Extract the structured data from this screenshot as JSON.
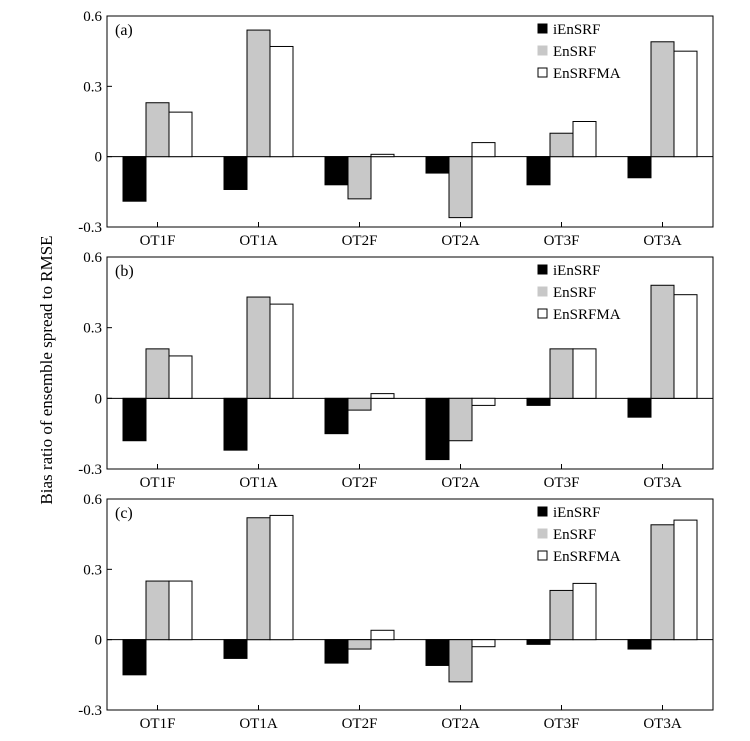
{
  "ylabel": "Bias ratio of ensemble spread to RMSE",
  "chart_data": [
    {
      "type": "bar",
      "panel_label": "(a)",
      "categories": [
        "OT1F",
        "OT1A",
        "OT2F",
        "OT2A",
        "OT3F",
        "OT3A"
      ],
      "series": [
        {
          "name": "iEnSRF",
          "color": "#000000",
          "values": [
            -0.19,
            -0.14,
            -0.12,
            -0.07,
            -0.12,
            -0.09
          ]
        },
        {
          "name": "EnSRF",
          "color": "#c8c8c8",
          "values": [
            0.23,
            0.54,
            -0.18,
            -0.26,
            0.1,
            0.49
          ]
        },
        {
          "name": "EnSRFMA",
          "color": "#ffffff",
          "values": [
            0.19,
            0.47,
            0.01,
            0.06,
            0.15,
            0.45
          ]
        }
      ],
      "ylim": [
        -0.3,
        0.6
      ],
      "yticks": [
        "-0.3",
        "0",
        "0.3",
        "0.6"
      ],
      "legend_position": "top-right"
    },
    {
      "type": "bar",
      "panel_label": "(b)",
      "categories": [
        "OT1F",
        "OT1A",
        "OT2F",
        "OT2A",
        "OT3F",
        "OT3A"
      ],
      "series": [
        {
          "name": "iEnSRF",
          "color": "#000000",
          "values": [
            -0.18,
            -0.22,
            -0.15,
            -0.26,
            -0.03,
            -0.08
          ]
        },
        {
          "name": "EnSRF",
          "color": "#c8c8c8",
          "values": [
            0.21,
            0.43,
            -0.05,
            -0.18,
            0.21,
            0.48
          ]
        },
        {
          "name": "EnSRFMA",
          "color": "#ffffff",
          "values": [
            0.18,
            0.4,
            0.02,
            -0.03,
            0.21,
            0.44
          ]
        }
      ],
      "ylim": [
        -0.3,
        0.6
      ],
      "yticks": [
        "-0.3",
        "0",
        "0.3",
        "0.6"
      ],
      "legend_position": "top-right"
    },
    {
      "type": "bar",
      "panel_label": "(c)",
      "categories": [
        "OT1F",
        "OT1A",
        "OT2F",
        "OT2A",
        "OT3F",
        "OT3A"
      ],
      "series": [
        {
          "name": "iEnSRF",
          "color": "#000000",
          "values": [
            -0.15,
            -0.08,
            -0.1,
            -0.11,
            -0.02,
            -0.04
          ]
        },
        {
          "name": "EnSRF",
          "color": "#c8c8c8",
          "values": [
            0.25,
            0.52,
            -0.04,
            -0.18,
            0.21,
            0.49
          ]
        },
        {
          "name": "EnSRFMA",
          "color": "#ffffff",
          "values": [
            0.25,
            0.53,
            0.04,
            -0.03,
            0.24,
            0.51
          ]
        }
      ],
      "ylim": [
        -0.3,
        0.6
      ],
      "yticks": [
        "-0.3",
        "0",
        "0.3",
        "0.6"
      ],
      "legend_position": "top-right"
    }
  ]
}
